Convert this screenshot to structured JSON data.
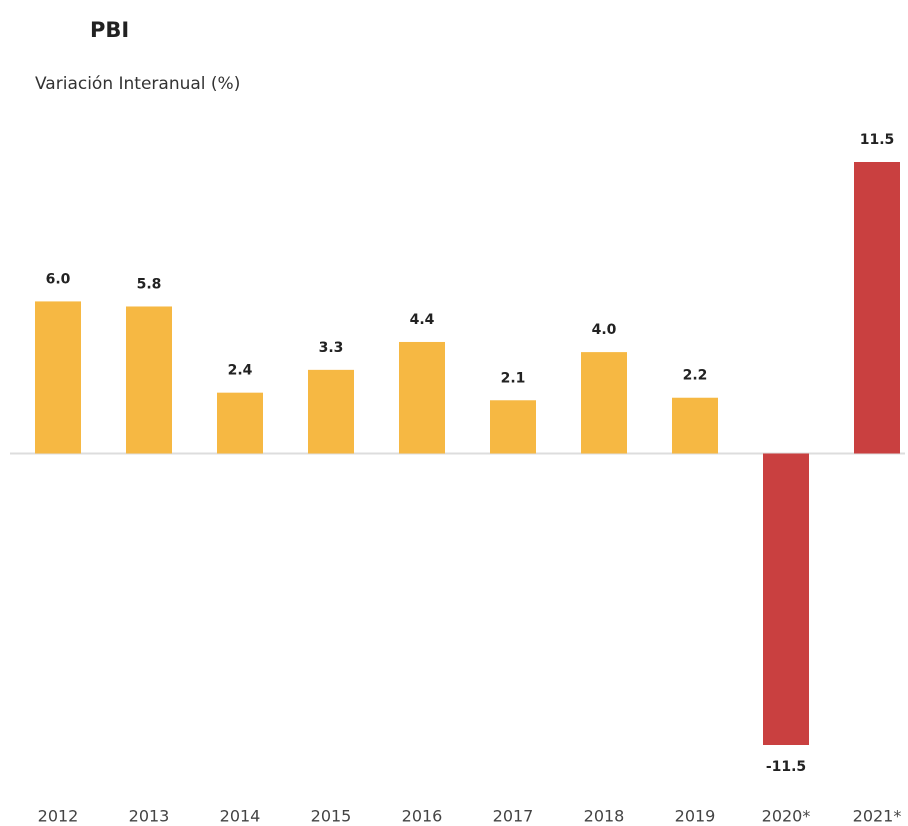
{
  "chart_data": {
    "type": "bar",
    "title": "PBI",
    "subtitle": "Variación Interanual (%)",
    "categories": [
      "2012",
      "2013",
      "2014",
      "2015",
      "2016",
      "2017",
      "2018",
      "2019",
      "2020*",
      "2021*"
    ],
    "values": [
      6.0,
      5.8,
      2.4,
      3.3,
      4.4,
      2.1,
      4.0,
      2.2,
      -11.5,
      11.5
    ],
    "value_labels": [
      "6.0",
      "5.8",
      "2.4",
      "3.3",
      "4.4",
      "2.1",
      "4.0",
      "2.2",
      "-11.5",
      "11.5"
    ],
    "colors": [
      "#f6b843",
      "#f6b843",
      "#f6b843",
      "#f6b843",
      "#f6b843",
      "#f6b843",
      "#f6b843",
      "#f6b843",
      "#c94040",
      "#c94040"
    ]
  }
}
